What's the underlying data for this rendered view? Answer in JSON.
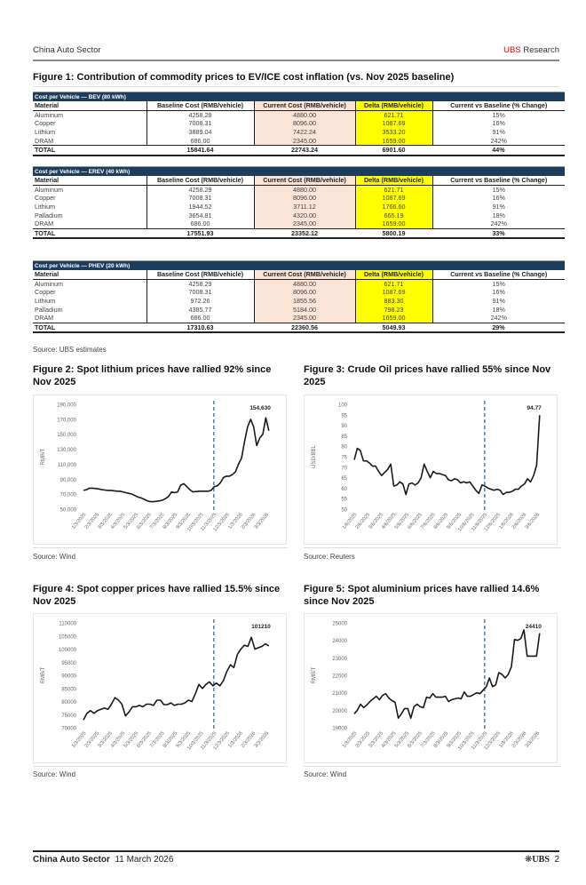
{
  "header": {
    "section": "China Auto Sector",
    "brand_red": "UBS",
    "brand_rest": " Research"
  },
  "figure1": {
    "title": "Figure 1: Contribution of commodity prices to EV/ICE cost inflation (vs. Nov 2025 baseline)",
    "columns": [
      "Material",
      "Baseline Cost (RMB/vehicle)",
      "Current Cost (RMB/vehicle)",
      "Delta (RMB/vehicle)",
      "Current vs Baseline (% Change)"
    ],
    "tables": [
      {
        "title": "Cost per Vehicle — BEV (80 kWh)",
        "rows": [
          [
            "Aluminum",
            "4258.29",
            "4880.00",
            "621.71",
            "15%"
          ],
          [
            "Copper",
            "7008.31",
            "8096.00",
            "1087.69",
            "16%"
          ],
          [
            "Lithium",
            "3889.04",
            "7422.24",
            "3533.20",
            "91%"
          ],
          [
            "DRAM",
            "686.00",
            "2345.00",
            "1659.00",
            "242%"
          ]
        ],
        "total": [
          "TOTAL",
          "15841.64",
          "22743.24",
          "6901.60",
          "44%"
        ]
      },
      {
        "title": "Cost per Vehicle — EREV (40 kWh)",
        "rows": [
          [
            "Aluminum",
            "4258.29",
            "4880.00",
            "621.71",
            "15%"
          ],
          [
            "Copper",
            "7008.31",
            "8096.00",
            "1087.69",
            "16%"
          ],
          [
            "Lithium",
            "1944.52",
            "3711.12",
            "1766.60",
            "91%"
          ],
          [
            "Palladium",
            "3654.81",
            "4320.00",
            "665.19",
            "18%"
          ],
          [
            "DRAM",
            "686.00",
            "2345.00",
            "1659.00",
            "242%"
          ]
        ],
        "total": [
          "TOTAL",
          "17551.93",
          "23352.12",
          "5800.19",
          "33%"
        ]
      },
      {
        "title": "Cost per Vehicle — PHEV (20 kWh)",
        "rows": [
          [
            "Aluminum",
            "4258.29",
            "4880.00",
            "621.71",
            "15%"
          ],
          [
            "Copper",
            "7008.31",
            "8096.00",
            "1087.69",
            "16%"
          ],
          [
            "Lithium",
            "972.26",
            "1855.56",
            "883.30",
            "91%"
          ],
          [
            "Palladium",
            "4385.77",
            "5184.00",
            "798.23",
            "18%"
          ],
          [
            "DRAM",
            "686.00",
            "2345.00",
            "1659.00",
            "242%"
          ]
        ],
        "total": [
          "TOTAL",
          "17310.63",
          "22360.56",
          "5049.93",
          "29%"
        ]
      }
    ],
    "source": "Source: UBS estimates",
    "colors": {
      "bar": "#1d3d5c",
      "current": "#fbe3d6",
      "delta": "#ffff00"
    }
  },
  "figures": [
    {
      "title": "Figure 2: Spot lithium prices have rallied 92% since Nov 2025",
      "source": "Source: Wind"
    },
    {
      "title": "Figure 3: Crude Oil prices have rallied 55% since Nov 2025",
      "source": "Source: Reuters"
    },
    {
      "title": "Figure 4: Spot copper prices have rallied 15.5% since Nov 2025",
      "source": "Source: Wind"
    },
    {
      "title": "Figure 5: Spot aluminium prices have rallied 14.6% since Nov 2025",
      "source": "Source: Wind"
    }
  ],
  "chart_data": [
    {
      "type": "line",
      "ylabel": "RMB/T",
      "ylim": [
        50000,
        190000
      ],
      "yticks": [
        "50,000",
        "70,000",
        "90,000",
        "110,000",
        "130,000",
        "150,000",
        "170,000",
        "190,000"
      ],
      "xticks": [
        "1/3/2025",
        "2/3/2025",
        "3/3/2025",
        "4/3/2025",
        "5/3/2025",
        "6/3/2025",
        "7/3/2025",
        "8/3/2025",
        "9/3/2025",
        "10/3/2025",
        "11/3/2025",
        "12/3/2025",
        "1/3/2026",
        "2/3/2026",
        "3/3/2026"
      ],
      "marker": "11/3/2025",
      "end_label": "154,630",
      "values": [
        75000,
        76000,
        78000,
        78000,
        77500,
        77000,
        76000,
        75500,
        75000,
        75000,
        74500,
        74000,
        74000,
        73000,
        72000,
        71000,
        70000,
        68000,
        66000,
        65000,
        63000,
        61000,
        60000,
        60000,
        60500,
        61000,
        62000,
        64000,
        67000,
        73000,
        72000,
        73000,
        82000,
        84000,
        80000,
        76000,
        73000,
        73500,
        74000,
        74000,
        74000,
        74000,
        75000,
        80000,
        81000,
        85000,
        92000,
        94000,
        94000,
        96000,
        100000,
        110000,
        118000,
        140000,
        160000,
        170000,
        160000,
        135000,
        145000,
        150000,
        172000,
        154630
      ]
    },
    {
      "type": "line",
      "ylabel": "USD/BBL",
      "ylim": [
        50,
        100
      ],
      "yticks": [
        "50",
        "55",
        "60",
        "65",
        "70",
        "75",
        "80",
        "85",
        "90",
        "95",
        "100"
      ],
      "xticks": [
        "1/6/2025",
        "2/6/2025",
        "3/6/2025",
        "4/6/2025",
        "5/6/2025",
        "6/6/2025",
        "7/6/2025",
        "8/6/2025",
        "9/6/2025",
        "10/6/2025",
        "11/6/2025",
        "12/6/2025",
        "1/6/2026",
        "2/6/2026",
        "3/6/2026"
      ],
      "marker": "11/6/2025",
      "end_label": "94.77",
      "values": [
        73.5,
        79,
        78,
        73,
        73,
        72,
        70.5,
        70.5,
        68,
        66,
        67.5,
        69,
        71.5,
        61,
        61.5,
        63,
        62,
        57,
        62,
        62.5,
        61.5,
        62.5,
        65,
        71.5,
        68,
        65,
        68,
        67,
        67,
        66.5,
        66,
        64,
        63.5,
        64.5,
        64,
        62.5,
        63,
        62.5,
        63,
        61,
        59,
        57.5,
        61.5,
        61,
        60,
        59.5,
        59,
        59.5,
        59,
        57,
        58,
        58,
        58.5,
        59.5,
        59.5,
        61,
        62,
        64.5,
        63,
        66,
        71,
        94.77
      ]
    },
    {
      "type": "line",
      "ylabel": "RMB/T",
      "ylim": [
        70000,
        110000
      ],
      "yticks": [
        "70000",
        "75000",
        "80000",
        "85000",
        "90000",
        "95000",
        "100000",
        "105000",
        "110000"
      ],
      "xticks": [
        "1/3/2025",
        "2/3/2025",
        "3/3/2025",
        "4/3/2025",
        "5/3/2025",
        "6/3/2025",
        "7/3/2025",
        "8/3/2025",
        "9/3/2025",
        "10/3/2025",
        "11/3/2025",
        "12/3/2025",
        "1/3/2026",
        "2/3/2026",
        "3/3/2026"
      ],
      "marker": "11/3/2025",
      "end_label": "101210",
      "values": [
        73000,
        75500,
        76500,
        75500,
        76500,
        77000,
        77500,
        77000,
        79000,
        81500,
        80500,
        79000,
        74500,
        76000,
        78000,
        78000,
        78500,
        78000,
        79000,
        79000,
        78500,
        80500,
        80500,
        78800,
        78800,
        79500,
        78500,
        79000,
        79000,
        79500,
        80500,
        80000,
        83000,
        86500,
        85000,
        86500,
        87500,
        86000,
        87000,
        86000,
        88000,
        91500,
        94000,
        93000,
        98000,
        100000,
        101500,
        101000,
        104500,
        100000,
        100500,
        101000,
        102000,
        101210
      ]
    },
    {
      "type": "line",
      "ylabel": "RMB/T",
      "ylim": [
        19000,
        25000
      ],
      "yticks": [
        "19000",
        "20000",
        "21000",
        "22000",
        "23000",
        "24000",
        "25000"
      ],
      "xticks": [
        "1/3/2025",
        "2/3/2025",
        "3/3/2025",
        "4/3/2025",
        "5/3/2025",
        "6/3/2025",
        "7/3/2025",
        "8/3/2025",
        "9/3/2025",
        "10/3/2025",
        "11/3/2025",
        "12/3/2025",
        "1/3/2026",
        "2/3/2026",
        "3/3/2026"
      ],
      "marker": "11/3/2025",
      "end_label": "24410",
      "values": [
        19800,
        20000,
        20350,
        20150,
        20300,
        20500,
        20650,
        20800,
        20600,
        20850,
        20950,
        20700,
        20550,
        20450,
        19550,
        19800,
        20100,
        20100,
        19550,
        20200,
        20350,
        20200,
        20150,
        20750,
        20700,
        20950,
        20750,
        20750,
        20750,
        20800,
        20500,
        20600,
        20650,
        20700,
        20650,
        21050,
        20800,
        20800,
        20900,
        21000,
        20950,
        21150,
        21350,
        21850,
        21350,
        21450,
        22150,
        22050,
        21850,
        22050,
        22500,
        24050,
        24000,
        24100,
        24600,
        23100,
        23100,
        23100,
        23100,
        24410
      ]
    }
  ],
  "footer": {
    "section": "China Auto Sector",
    "date": "11 March 2026",
    "logo": "UBS",
    "page": "2"
  }
}
